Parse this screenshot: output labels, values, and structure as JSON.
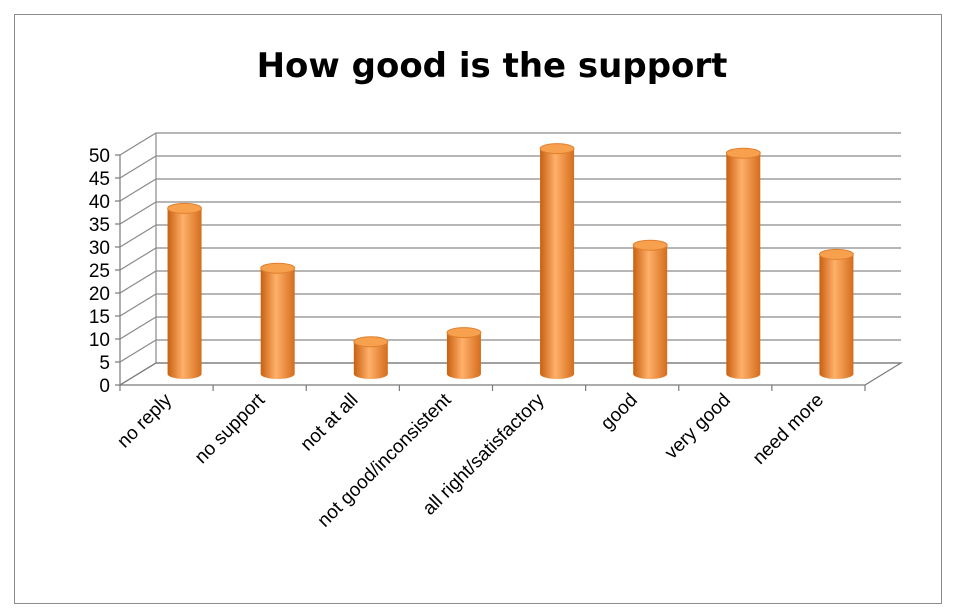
{
  "chart_data": {
    "type": "bar",
    "style": "3d-cylinder",
    "title": "How good is the support",
    "xlabel": "",
    "ylabel": "",
    "ylim": [
      0,
      50
    ],
    "yticks": [
      0,
      5,
      10,
      15,
      20,
      25,
      30,
      35,
      40,
      45,
      50
    ],
    "grid": true,
    "legend": "none",
    "bar_color": "#f0923f",
    "categories": [
      "no reply",
      "no support",
      "not at all",
      "not good/inconsistent",
      "all right/satisfactory",
      "good",
      "very good",
      "need more"
    ],
    "values": [
      36,
      23,
      7,
      9,
      49,
      28,
      48,
      26
    ]
  }
}
